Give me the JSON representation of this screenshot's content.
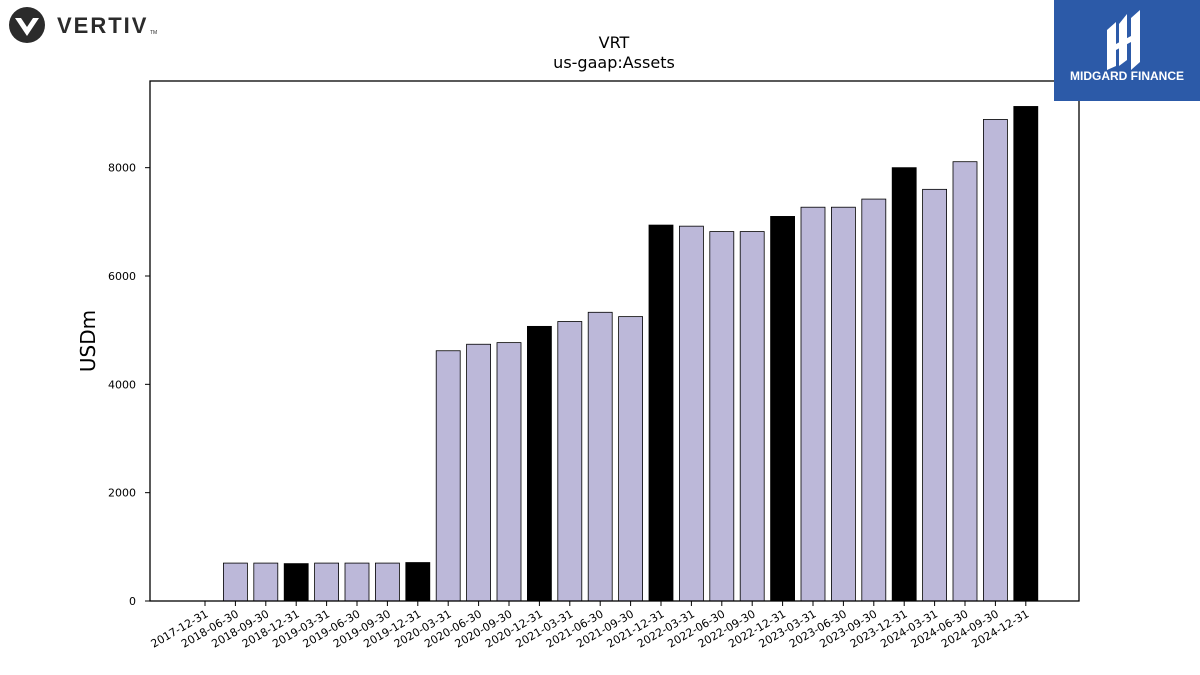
{
  "branding": {
    "company_logo_text": "VERTIV",
    "company_logo_mark": "TM",
    "publisher_logo_text": "MIDGARD FINANCE"
  },
  "chart_data": {
    "type": "bar",
    "title": "VRT",
    "subtitle": "us-gaap:Assets",
    "xlabel": "",
    "ylabel": "USDm",
    "ylim": [
      0,
      9600
    ],
    "yticks": [
      0,
      2000,
      4000,
      6000,
      8000
    ],
    "categories": [
      "2017-12-31",
      "2018-06-30",
      "2018-09-30",
      "2018-12-31",
      "2019-03-31",
      "2019-06-30",
      "2019-09-30",
      "2019-12-31",
      "2020-03-31",
      "2020-06-30",
      "2020-09-30",
      "2020-12-31",
      "2021-03-31",
      "2021-06-30",
      "2021-09-30",
      "2021-12-31",
      "2022-03-31",
      "2022-06-30",
      "2022-09-30",
      "2022-12-31",
      "2023-03-31",
      "2023-06-30",
      "2023-09-30",
      "2023-12-31",
      "2024-03-31",
      "2024-06-30",
      "2024-09-30",
      "2024-12-31"
    ],
    "values": [
      0,
      700,
      700,
      690,
      700,
      700,
      700,
      710,
      4620,
      4740,
      4770,
      5070,
      5160,
      5330,
      5250,
      6940,
      6920,
      6820,
      6820,
      7100,
      7270,
      7270,
      7420,
      8000,
      7600,
      8110,
      8890,
      9130
    ],
    "bar_kind": [
      "quarter",
      "quarter",
      "quarter",
      "year-end",
      "quarter",
      "quarter",
      "quarter",
      "year-end",
      "quarter",
      "quarter",
      "quarter",
      "year-end",
      "quarter",
      "quarter",
      "quarter",
      "year-end",
      "quarter",
      "quarter",
      "quarter",
      "year-end",
      "quarter",
      "quarter",
      "quarter",
      "year-end",
      "quarter",
      "quarter",
      "quarter",
      "year-end"
    ],
    "colors": {
      "quarter": "#bcb8d9",
      "year-end": "#000000",
      "edge": "#000000"
    },
    "grid": false,
    "legend": "none"
  }
}
